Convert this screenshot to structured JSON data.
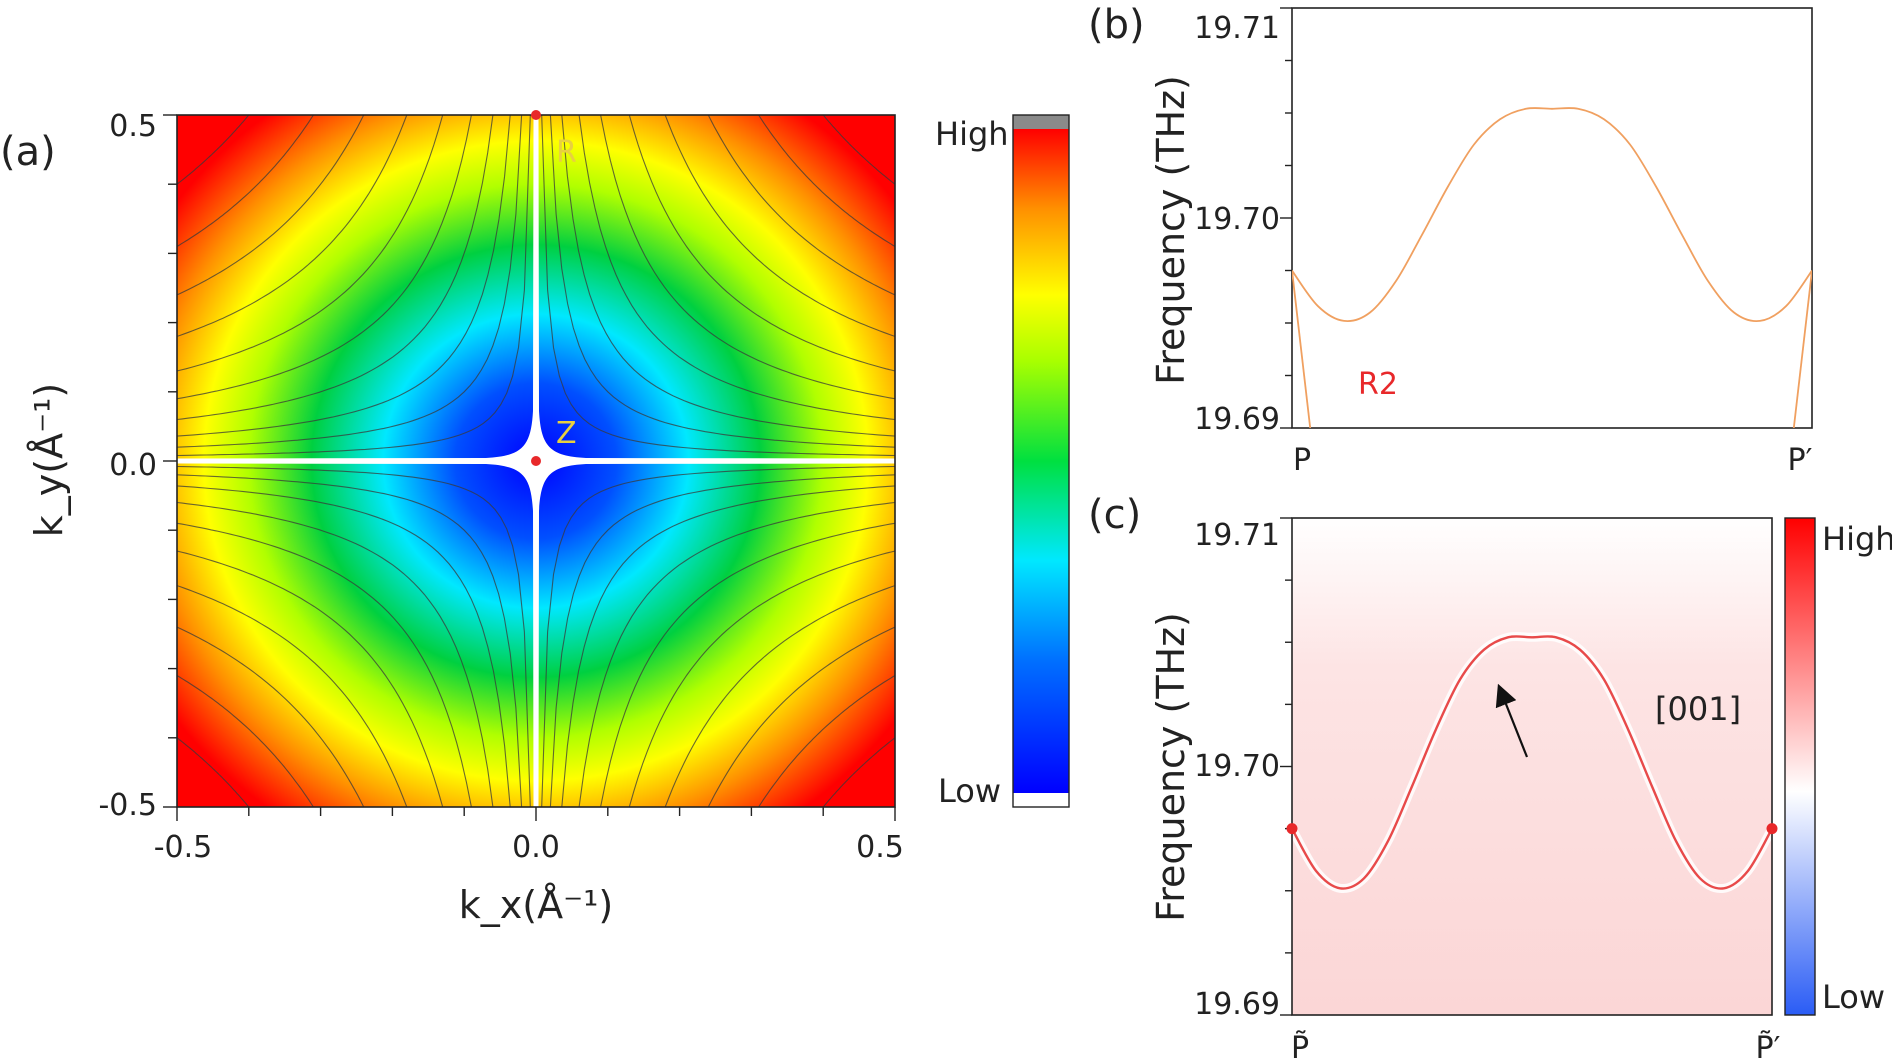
{
  "panels": {
    "a": {
      "label": "(a)",
      "chart_data": {
        "type": "heatmap",
        "xlabel": "k_x(Å⁻¹)",
        "ylabel": "k_y(Å⁻¹)",
        "xlim": [
          -0.5,
          0.5
        ],
        "ylim": [
          -0.5,
          0.5
        ],
        "x_ticks": [
          "-0.5",
          "0.0",
          "0.5"
        ],
        "y_ticks": [
          "0.5",
          "0.0",
          "-0.5"
        ],
        "points": [
          {
            "name": "R",
            "kx": 0.0,
            "ky": 0.5,
            "color": "#e8282a"
          },
          {
            "name": "Z",
            "kx": 0.0,
            "ky": 0.0,
            "color": "#e8282a"
          }
        ],
        "colorbar": {
          "high": "High",
          "low": "Low",
          "colormap": "jet"
        }
      }
    },
    "b": {
      "label": "(b)",
      "chart_data": {
        "type": "line",
        "ylabel": "Frequency (THz)",
        "ylim": [
          19.69,
          19.71
        ],
        "y_ticks": [
          "19.71",
          "19.70",
          "19.69"
        ],
        "x_ticks": [
          "P",
          "P′"
        ],
        "series": [
          {
            "color": "#f0a060",
            "x": [
              0,
              0.05,
              0.1,
              0.15,
              0.2,
              0.25,
              0.3,
              0.35,
              0.4,
              0.45,
              0.5,
              0.55,
              0.6,
              0.65,
              0.7,
              0.75,
              0.8,
              0.85,
              0.9,
              0.95,
              1.0
            ],
            "y": [
              19.6975,
              19.6958,
              19.6951,
              19.6955,
              19.697,
              19.6992,
              19.7015,
              19.7035,
              19.7047,
              19.7052,
              19.7052,
              19.7052,
              19.7047,
              19.7035,
              19.7015,
              19.6992,
              19.697,
              19.6955,
              19.6951,
              19.6958,
              19.6975
            ]
          },
          {
            "color": "#f0a060",
            "x": [
              0,
              0.035
            ],
            "y": [
              19.6975,
              19.69
            ]
          },
          {
            "color": "#f0a060",
            "x": [
              0.965,
              1.0
            ],
            "y": [
              19.69,
              19.6975
            ]
          }
        ],
        "annotations": [
          {
            "text": "R2",
            "color": "#e8282a"
          }
        ]
      }
    },
    "c": {
      "label": "(c)",
      "chart_data": {
        "type": "heatmap",
        "ylabel": "Frequency (THz)",
        "ylim": [
          19.69,
          19.71
        ],
        "y_ticks": [
          "19.71",
          "19.70",
          "19.69"
        ],
        "x_ticks": [
          "P̃",
          "P̃′"
        ],
        "surface_state_x": [
          0,
          0.05,
          0.1,
          0.15,
          0.2,
          0.25,
          0.3,
          0.35,
          0.4,
          0.45,
          0.5,
          0.55,
          0.6,
          0.65,
          0.7,
          0.75,
          0.8,
          0.85,
          0.9,
          0.95,
          1.0
        ],
        "surface_state_y": [
          19.6975,
          19.6958,
          19.6951,
          19.6955,
          19.697,
          19.6992,
          19.7015,
          19.7035,
          19.7047,
          19.7052,
          19.7052,
          19.7052,
          19.7047,
          19.7035,
          19.7015,
          19.6992,
          19.697,
          19.6955,
          19.6951,
          19.6958,
          19.6975
        ],
        "points": [
          {
            "x": 0.0,
            "y": 19.6975,
            "color": "#e8282a"
          },
          {
            "x": 1.0,
            "y": 19.6975,
            "color": "#e8282a"
          }
        ],
        "annotations": [
          {
            "text": "[001]"
          }
        ],
        "colorbar": {
          "high": "High",
          "low": "Low",
          "colormap": "blue-white-red"
        }
      }
    }
  }
}
